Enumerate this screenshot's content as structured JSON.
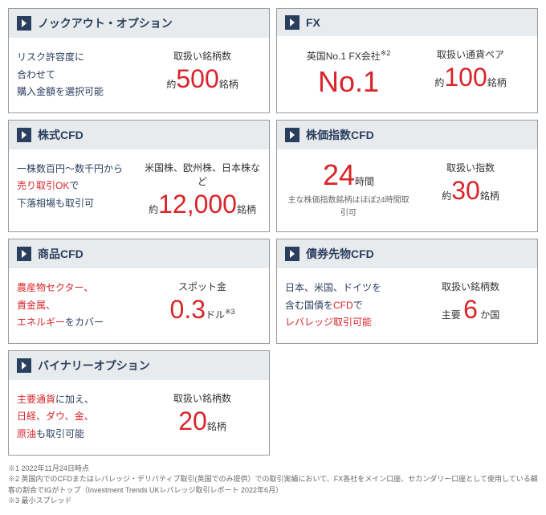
{
  "cards": [
    {
      "title": "ノックアウト・オプション",
      "left_html": "<span class='navy'>リスク許容度に<br>合わせて<br>購入金額を選択可能</span>",
      "right_label": "取扱い銘柄数",
      "right_prefix": "約",
      "right_big": "500",
      "right_suffix": "銘柄"
    },
    {
      "title": "FX",
      "left_center": true,
      "left_label": "英国No.1 FX会社",
      "left_sup": "※2",
      "left_big": "No.1",
      "right_label": "取扱い通貨ペア",
      "right_prefix": "約",
      "right_big": "100",
      "right_suffix": "銘柄"
    },
    {
      "title": "株式CFD",
      "left_html": "<span class='navy'>一株数百円〜数千円から</span><br><span class='red-inline'>売り取引OK</span><span class='navy'>で</span><br><span class='navy'>下落相場も取引可</span>",
      "right_label": "米国株、欧州株、日本株など",
      "right_prefix": "約",
      "right_big": "12,000",
      "right_suffix": "銘柄"
    },
    {
      "title": "株価指数CFD",
      "left_center": true,
      "left_big": "24",
      "left_big_suffix": "時間",
      "left_sub": "主な株価指数銘柄はほぼ24時間取引可",
      "right_label": "取扱い指数",
      "right_prefix": "約",
      "right_big": "30",
      "right_suffix": "銘柄"
    },
    {
      "title": "商品CFD",
      "left_html": "<span class='red-inline'>農産物セクター、<br>貴金属、<br>エネルギー</span><span class='navy'>をカバー</span>",
      "right_label": "スポット金",
      "right_prefix": "",
      "right_big": "0.3",
      "right_suffix": "ドル",
      "right_sup": "※3"
    },
    {
      "title": "債券先物CFD",
      "left_html": "<span class='navy'>日本、米国、ドイツを<br>含む国債を</span><span class='red-inline'>CFD</span><span class='navy'>で</span><br><span class='red-inline'>レバレッジ取引可能</span>",
      "right_label": "取扱い銘柄数",
      "right_prefix": "主要 ",
      "right_big": "6",
      "right_suffix": " か国"
    },
    {
      "title": "バイナリーオプション",
      "single": true,
      "left_html": "<span class='red-inline'>主要通貨</span><span class='navy'>に加え、</span><br><span class='red-inline'>日経、ダウ、金、<br>原油</span><span class='navy'>も取引可能</span>",
      "right_label": "取扱い銘柄数",
      "right_prefix": "",
      "right_big": "20",
      "right_suffix": "銘柄"
    }
  ],
  "footnotes": [
    "※1 2022年11月24日時点",
    "※2 英国内でのCFDまたはレバレッジ・デリバティブ取引(英国でのみ提供）での取引実績において、FX各社をメイン口座、セカンダリー口座として使用している顧客の割合でIGがトップ（Investment Trends UKレバレッジ取引レポート 2022年6月）",
    "※3 最小スプレッド"
  ]
}
